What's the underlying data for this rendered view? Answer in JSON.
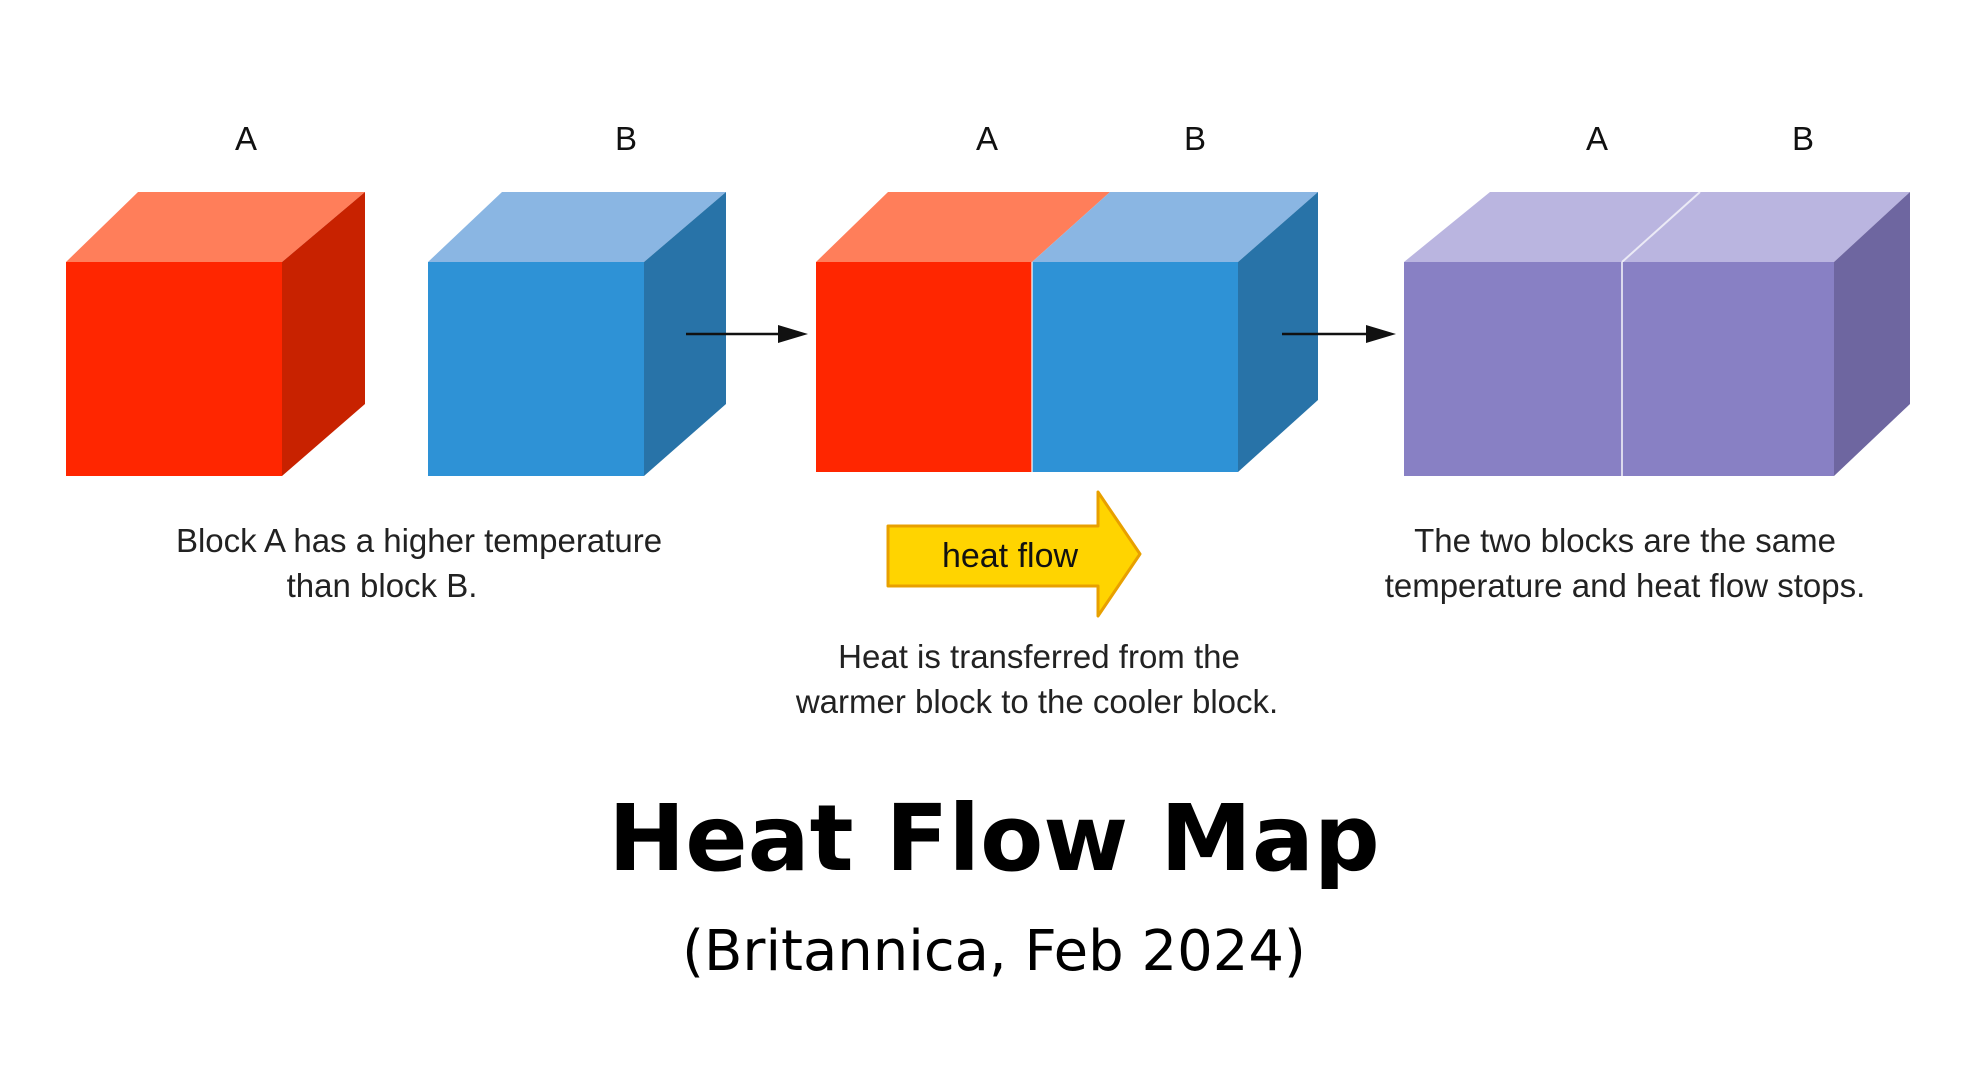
{
  "stage1": {
    "label_a": "A",
    "label_b": "B",
    "caption_line1": "Block A has a higher temperature",
    "caption_line2": "than block B."
  },
  "stage2": {
    "label_a": "A",
    "label_b": "B",
    "heat_flow_label": "heat flow",
    "caption_line1": "Heat is transferred from the",
    "caption_line2": "warmer block to the cooler block."
  },
  "stage3": {
    "label_a": "A",
    "label_b": "B",
    "caption_line1": "The two blocks are the same",
    "caption_line2": "temperature and heat flow stops."
  },
  "title": "Heat Flow Map",
  "subtitle": "(Britannica, Feb 2024)",
  "colors": {
    "hot_front": "#ff2600",
    "hot_top": "#ff7e5a",
    "hot_side": "#c82200",
    "cold_front": "#2e92d6",
    "cold_top": "#8ab6e3",
    "cold_side": "#2873a8",
    "mixed_front": "#8880c4",
    "mixed_top": "#bab5e0",
    "mixed_side": "#6e66a0",
    "arrow_fill": "#ffd400",
    "arrow_stroke": "#e8a000"
  }
}
